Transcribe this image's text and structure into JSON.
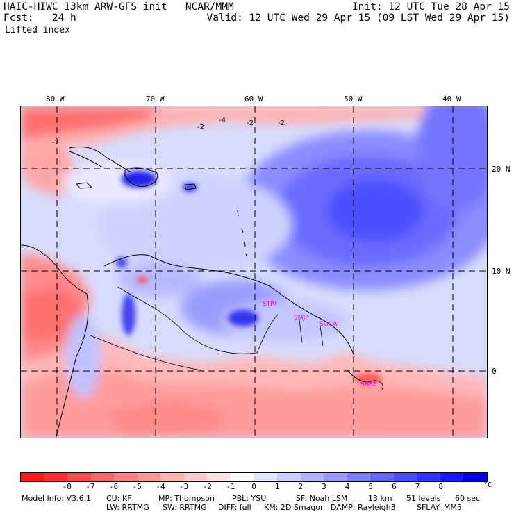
{
  "header": {
    "model_line": "HAIC-HIWC 13km ARW-GFS init   NCAR/MMM",
    "init_line": "Init: 12 UTC Tue 28 Apr 15",
    "fcst_line": "Fcst:   24 h",
    "valid_line": "Valid: 12 UTC Wed 29 Apr 15 (09 LST Wed 29 Apr 15)",
    "field_name": "Lifted index"
  },
  "axes": {
    "lon_labels": [
      "80 W",
      "70 W",
      "60 W",
      "50 W",
      "40 W"
    ],
    "lat_labels": [
      "20 N",
      "10 N",
      "0"
    ]
  },
  "contour_labels": [
    "-2",
    "-4",
    "-2",
    "-2",
    "-2"
  ],
  "sites": [
    "STRI",
    "SMJP",
    "SOCA",
    "SBBE"
  ],
  "colorbar": {
    "ticks": [
      "-8",
      "-7",
      "-6",
      "-5",
      "-4",
      "-3",
      "-2",
      "-1",
      "0",
      "1",
      "2",
      "3",
      "4",
      "5",
      "6",
      "7",
      "8"
    ],
    "unit": "°C",
    "colors": [
      "#ff1a1a",
      "#ff3333",
      "#ff4d4d",
      "#ff6666",
      "#ff8080",
      "#ff9999",
      "#ffb3b3",
      "#ffcccc",
      "#ffe6e6",
      "#ffffff",
      "#e6e6ff",
      "#ccccff",
      "#b3b3ff",
      "#9999ff",
      "#8080ff",
      "#6666ff",
      "#4d4dff",
      "#3333ff",
      "#1a1aff",
      "#0000e6"
    ]
  },
  "model_info": {
    "line1": [
      "Model Info: V3.6.1",
      "CU: KF",
      "MP: Thompson",
      "PBL: YSU",
      "SF: Noah LSM",
      "13 km",
      "51 levels",
      "60 sec"
    ],
    "line2": [
      "LW: RRTMG",
      "SW: RRTMG",
      "DIFF: full",
      "KM: 2D Smagor",
      "DAMP: Rayleigh3",
      "SFLAY: MM5"
    ]
  }
}
